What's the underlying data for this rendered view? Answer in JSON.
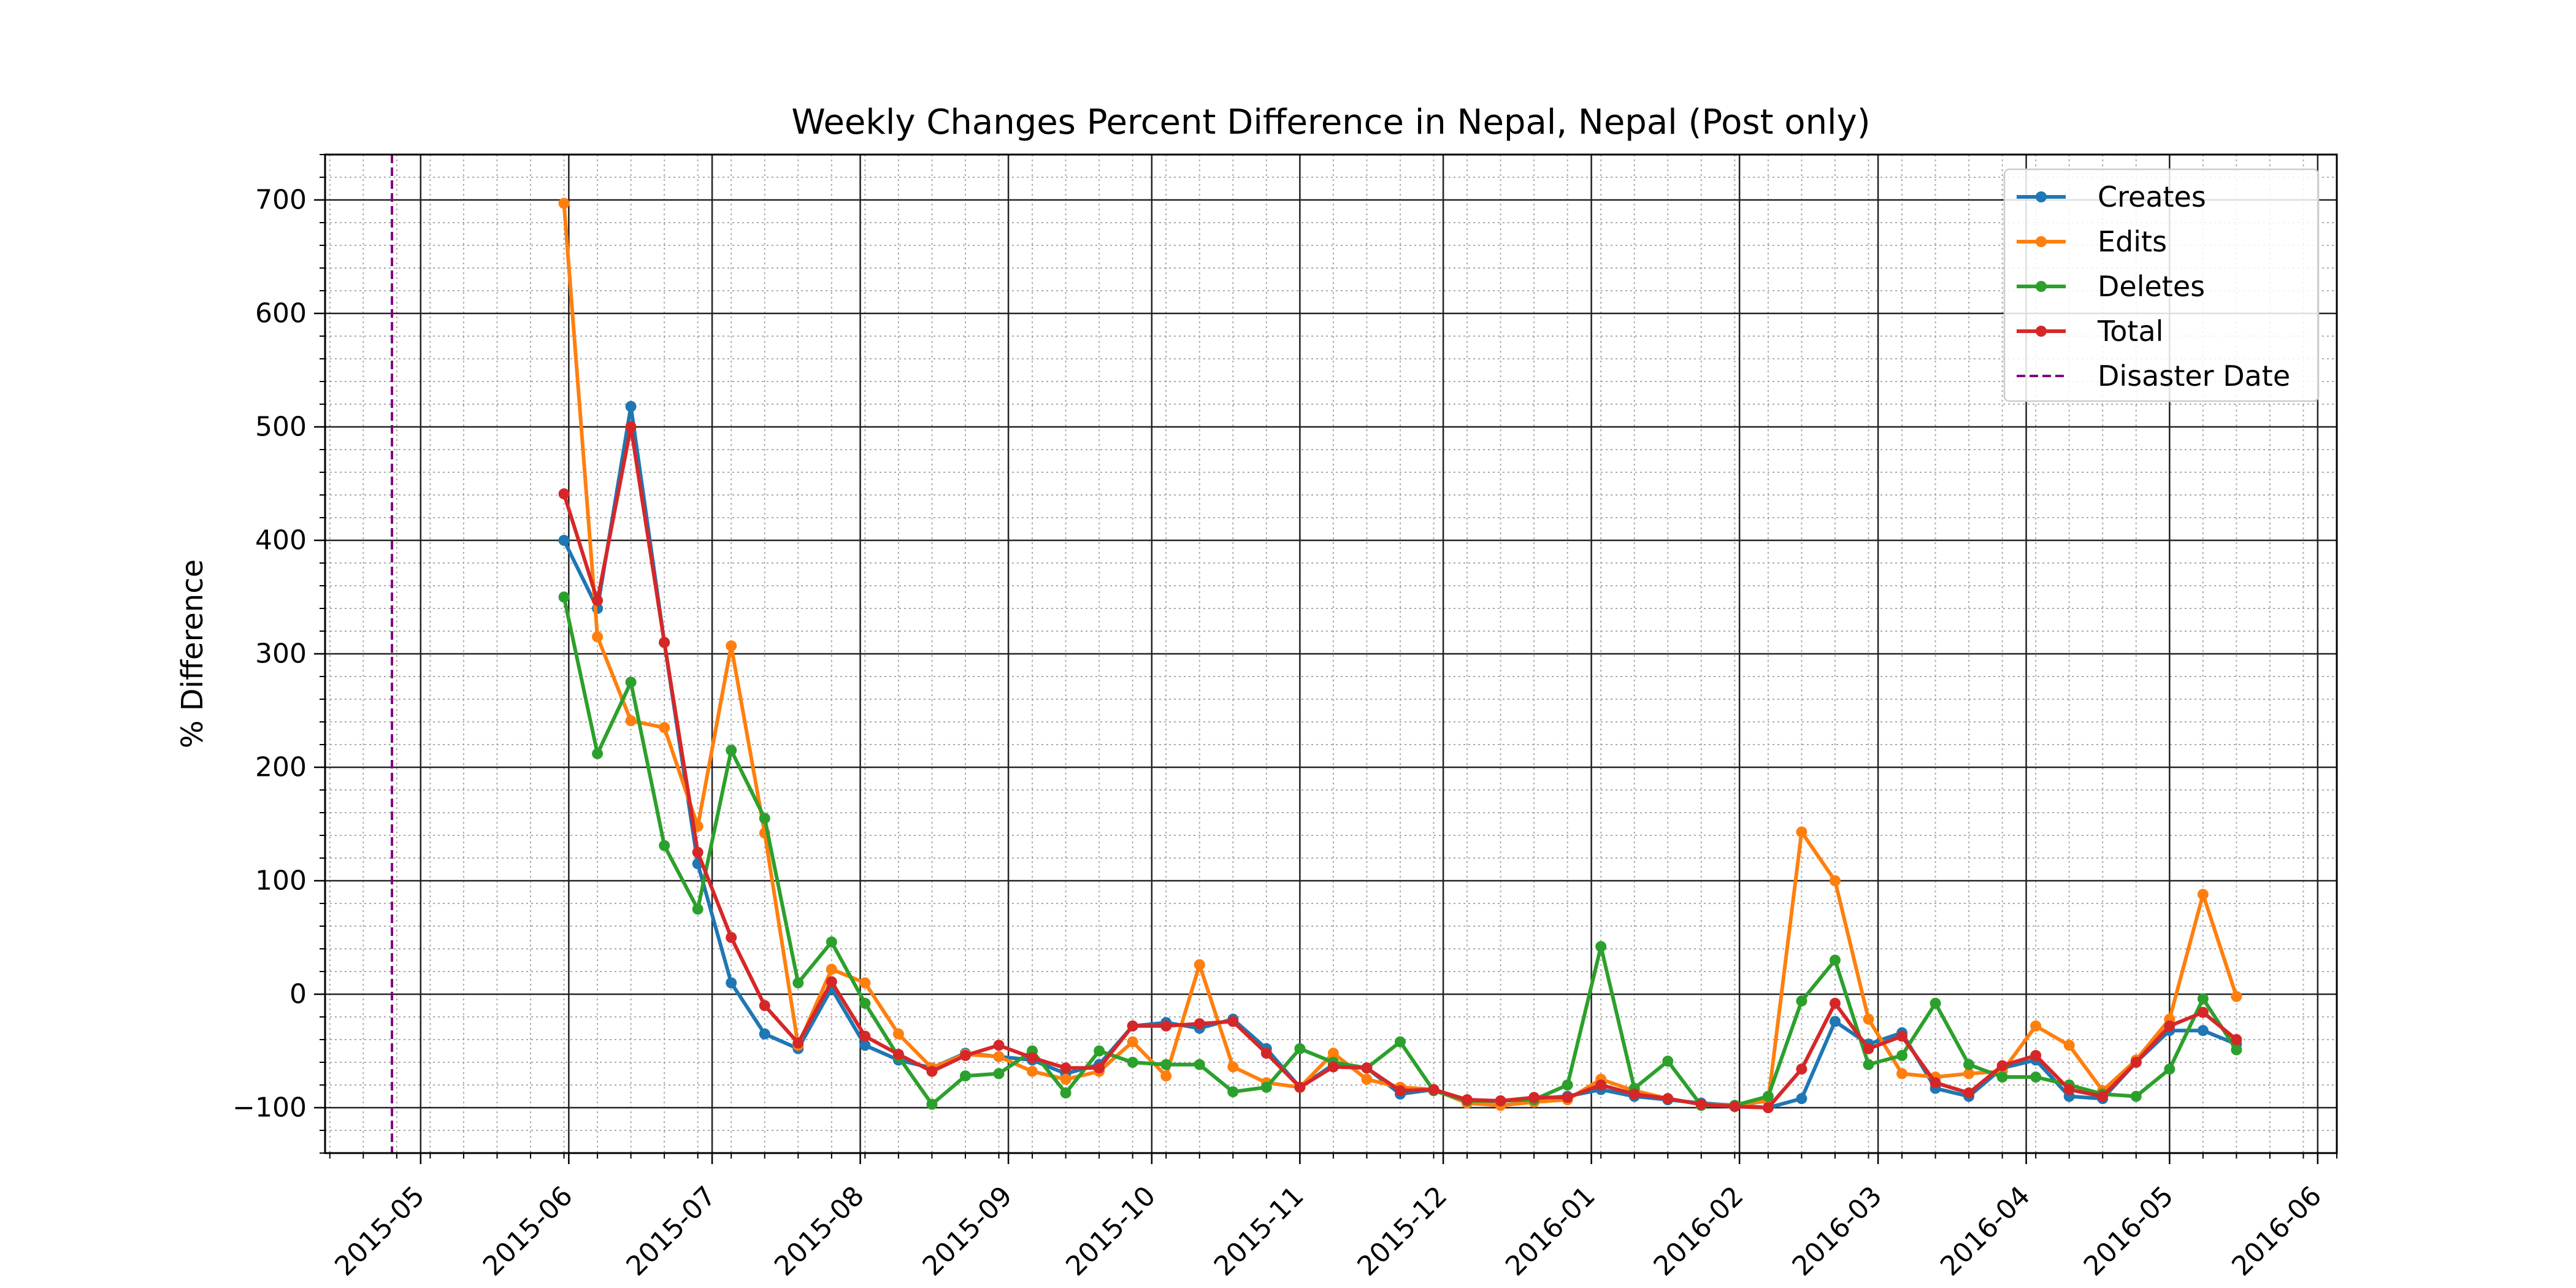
{
  "chart_data": {
    "type": "line",
    "title": "Weekly Changes Percent Difference in Nepal, Nepal (Post only)",
    "xlabel": "",
    "ylabel": "% Difference",
    "xlim": [
      "2015-04-11",
      "2016-06-05"
    ],
    "ylim": [
      -140,
      740
    ],
    "x_ticks": [
      "2015-05-01",
      "2015-06-01",
      "2015-07-01",
      "2015-08-01",
      "2015-09-01",
      "2015-10-01",
      "2015-11-01",
      "2015-12-01",
      "2016-01-01",
      "2016-02-01",
      "2016-03-01",
      "2016-04-01",
      "2016-05-01",
      "2016-06-01"
    ],
    "x_tick_labels": [
      "2015-05",
      "2015-06",
      "2015-07",
      "2015-08",
      "2015-09",
      "2015-10",
      "2015-11",
      "2015-12",
      "2016-01",
      "2016-02",
      "2016-03",
      "2016-04",
      "2016-05",
      "2016-06"
    ],
    "y_ticks": [
      -100,
      0,
      100,
      200,
      300,
      400,
      500,
      600,
      700
    ],
    "y_tick_labels": [
      "−100",
      "0",
      "100",
      "200",
      "300",
      "400",
      "500",
      "600",
      "700"
    ],
    "grid": "major and minor",
    "legend_position": "top-right",
    "disaster_date": "2015-04-25",
    "x": [
      "2015-05-31",
      "2015-06-07",
      "2015-06-14",
      "2015-06-21",
      "2015-06-28",
      "2015-07-05",
      "2015-07-12",
      "2015-07-19",
      "2015-07-26",
      "2015-08-02",
      "2015-08-09",
      "2015-08-16",
      "2015-08-23",
      "2015-08-30",
      "2015-09-06",
      "2015-09-13",
      "2015-09-20",
      "2015-09-27",
      "2015-10-04",
      "2015-10-11",
      "2015-10-18",
      "2015-10-25",
      "2015-11-01",
      "2015-11-08",
      "2015-11-15",
      "2015-11-22",
      "2015-11-29",
      "2015-12-06",
      "2015-12-13",
      "2015-12-20",
      "2015-12-27",
      "2016-01-03",
      "2016-01-10",
      "2016-01-17",
      "2016-01-24",
      "2016-01-31",
      "2016-02-07",
      "2016-02-14",
      "2016-02-21",
      "2016-02-28",
      "2016-03-06",
      "2016-03-13",
      "2016-03-20",
      "2016-03-27",
      "2016-04-03",
      "2016-04-10",
      "2016-04-17",
      "2016-04-24",
      "2016-05-01",
      "2016-05-08",
      "2016-05-15"
    ],
    "series": [
      {
        "name": "Creates",
        "color": "#1f77b4",
        "values": [
          400,
          340,
          518,
          310,
          115,
          10,
          -35,
          -48,
          5,
          -45,
          -58,
          -65,
          -52,
          -55,
          -58,
          -70,
          -62,
          -28,
          -25,
          -30,
          -22,
          -48,
          -82,
          -62,
          -65,
          -88,
          -84,
          -95,
          -94,
          -92,
          -90,
          -84,
          -90,
          -93,
          -96,
          -98,
          -100,
          -92,
          -24,
          -44,
          -34,
          -83,
          -90,
          -65,
          -58,
          -90,
          -92,
          -60,
          -32,
          -32,
          -44
        ]
      },
      {
        "name": "Edits",
        "color": "#ff7f0e",
        "values": [
          697,
          315,
          241,
          235,
          148,
          307,
          142,
          -45,
          22,
          10,
          -35,
          -65,
          -53,
          -55,
          -68,
          -75,
          -68,
          -42,
          -72,
          26,
          -64,
          -78,
          -82,
          -52,
          -75,
          -82,
          -84,
          -96,
          -98,
          -95,
          -93,
          -75,
          -85,
          -92,
          -97,
          -98,
          -94,
          143,
          100,
          -22,
          -70,
          -73,
          -70,
          -68,
          -28,
          -45,
          -85,
          -58,
          -22,
          88,
          -2
        ]
      },
      {
        "name": "Deletes",
        "color": "#2ca02c",
        "values": [
          350,
          212,
          275,
          131,
          75,
          215,
          155,
          10,
          46,
          -8,
          -55,
          -97,
          -72,
          -70,
          -50,
          -87,
          -50,
          -60,
          -62,
          -62,
          -86,
          -82,
          -48,
          -60,
          -65,
          -42,
          -85,
          -94,
          -94,
          -93,
          -80,
          42,
          -83,
          -59,
          -98,
          -98,
          -90,
          -6,
          30,
          -62,
          -54,
          -8,
          -62,
          -73,
          -73,
          -80,
          -88,
          -90,
          -66,
          -4,
          -49
        ]
      },
      {
        "name": "Total",
        "color": "#d62728",
        "values": [
          441,
          347,
          500,
          310,
          125,
          50,
          -10,
          -43,
          11,
          -37,
          -53,
          -68,
          -54,
          -45,
          -56,
          -65,
          -65,
          -28,
          -28,
          -26,
          -24,
          -52,
          -82,
          -64,
          -65,
          -85,
          -84,
          -93,
          -94,
          -91,
          -91,
          -80,
          -88,
          -92,
          -97,
          -99,
          -100,
          -66,
          -8,
          -48,
          -37,
          -78,
          -87,
          -63,
          -54,
          -84,
          -90,
          -60,
          -28,
          -16,
          -40
        ]
      }
    ],
    "vline": {
      "name": "Disaster Date",
      "color": "#800080",
      "style": "dashed"
    }
  }
}
